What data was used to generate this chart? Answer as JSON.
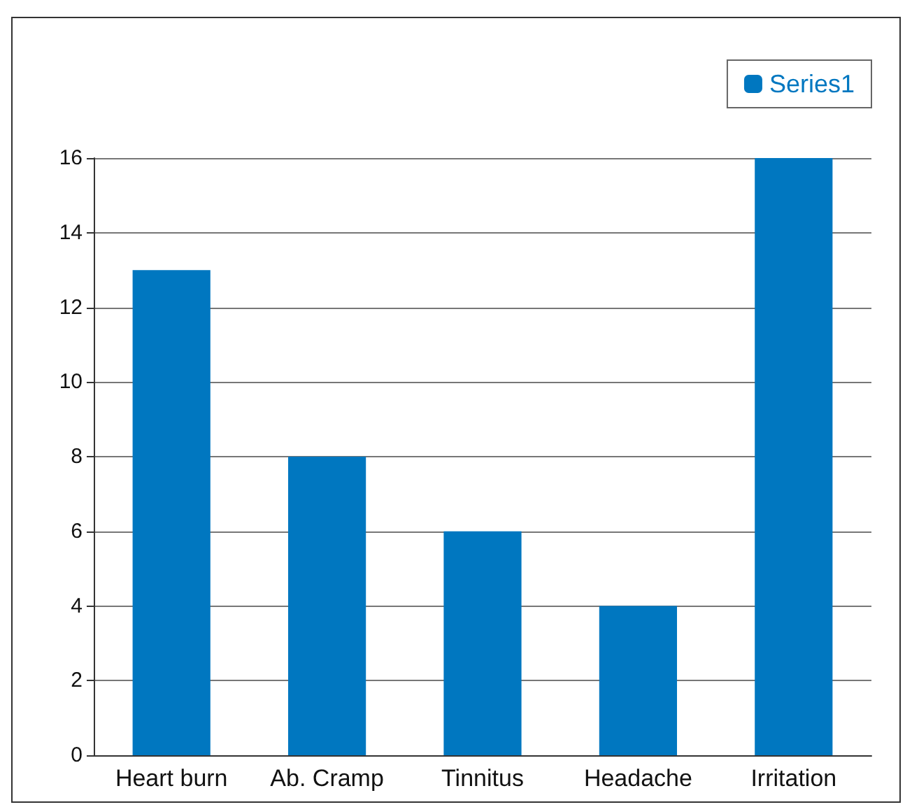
{
  "chart_data": {
    "type": "bar",
    "categories": [
      "Heart burn",
      "Ab. Cramp",
      "Tinnitus",
      "Headache",
      "Irritation"
    ],
    "series": [
      {
        "name": "Series1",
        "color": "#0077c0",
        "values": [
          13,
          8,
          6,
          4,
          16
        ]
      }
    ],
    "ylim": [
      0,
      16
    ],
    "yticks": [
      0,
      2,
      4,
      6,
      8,
      10,
      12,
      14,
      16
    ],
    "grid": "y",
    "legend": "top right"
  }
}
